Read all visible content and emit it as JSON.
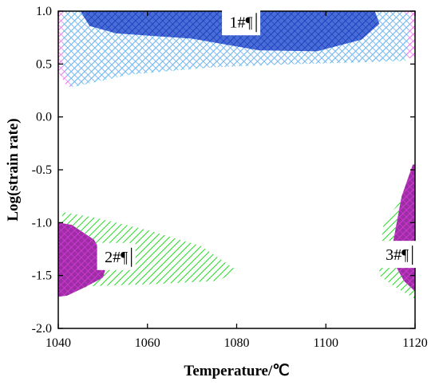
{
  "chart_data": {
    "type": "contour",
    "xlabel": "Temperature/℃",
    "ylabel": "Log(strain rate)",
    "xlim": [
      1040,
      1120
    ],
    "ylim": [
      -2.0,
      1.0
    ],
    "x_ticks": [
      "1040",
      "1060",
      "1080",
      "1100",
      "1120"
    ],
    "y_ticks": [
      "1.0",
      "0.5",
      "0.0",
      "-0.5",
      "-1.0",
      "-1.5",
      "-2.0"
    ],
    "grid": false,
    "regions": [
      {
        "label": "1#¶",
        "label_at": [
          1081,
          0.9
        ],
        "layers": [
          {
            "hatch": "crosshatch",
            "color": "#f06ef0",
            "polygon": [
              [
                1040,
                0.43
              ],
              [
                1042,
                0.28
              ],
              [
                1054,
                0.4
              ],
              [
                1070,
                0.46
              ],
              [
                1090,
                0.5
              ],
              [
                1110,
                0.52
              ],
              [
                1120,
                0.56
              ],
              [
                1120,
                1.0
              ],
              [
                1040,
                1.0
              ]
            ]
          },
          {
            "hatch": "crosshatch",
            "color": "#5ec8f0",
            "polygon": [
              [
                1041,
                0.48
              ],
              [
                1043,
                0.28
              ],
              [
                1056,
                0.4
              ],
              [
                1075,
                0.47
              ],
              [
                1095,
                0.5
              ],
              [
                1118,
                0.53
              ],
              [
                1119,
                0.95
              ],
              [
                1117,
                1.0
              ],
              [
                1041,
                1.0
              ]
            ]
          },
          {
            "hatch": "crosshatch",
            "color": "#1e3fbe",
            "fill": "#4a6ed8",
            "polygon": [
              [
                1045,
                1.0
              ],
              [
                1047,
                0.86
              ],
              [
                1053,
                0.79
              ],
              [
                1070,
                0.74
              ],
              [
                1085,
                0.63
              ],
              [
                1098,
                0.62
              ],
              [
                1108,
                0.73
              ],
              [
                1112,
                0.88
              ],
              [
                1111,
                1.0
              ]
            ]
          }
        ]
      },
      {
        "label": "2#¶",
        "label_at": [
          1053,
          -1.32
        ],
        "layers": [
          {
            "hatch": "diagonal",
            "color": "#22dd22",
            "polygon": [
              [
                1040,
                -1.22
              ],
              [
                1041,
                -0.9
              ],
              [
                1048,
                -0.95
              ],
              [
                1060,
                -1.07
              ],
              [
                1072,
                -1.22
              ],
              [
                1080,
                -1.45
              ],
              [
                1076,
                -1.55
              ],
              [
                1062,
                -1.58
              ],
              [
                1048,
                -1.6
              ],
              [
                1040,
                -1.65
              ]
            ]
          },
          {
            "hatch": "crosshatch",
            "color": "#d23ad2",
            "fill": "#9c2da5",
            "polygon": [
              [
                1040,
                -1.0
              ],
              [
                1043,
                -1.02
              ],
              [
                1048,
                -1.16
              ],
              [
                1051,
                -1.38
              ],
              [
                1050,
                -1.52
              ],
              [
                1046,
                -1.61
              ],
              [
                1042,
                -1.69
              ],
              [
                1040,
                -1.7
              ]
            ]
          }
        ]
      },
      {
        "label": "3#¶",
        "label_at": [
          1116,
          -1.3
        ],
        "layers": [
          {
            "hatch": "diagonal",
            "color": "#22dd22",
            "polygon": [
              [
                1112,
                -1.3
              ],
              [
                1113,
                -1.0
              ],
              [
                1117,
                -0.78
              ],
              [
                1120,
                -0.58
              ],
              [
                1120,
                -1.72
              ],
              [
                1116,
                -1.62
              ],
              [
                1112,
                -1.5
              ]
            ]
          },
          {
            "hatch": "crosshatch",
            "color": "#d23ad2",
            "fill": "#9c2da5",
            "polygon": [
              [
                1115,
                -1.2
              ],
              [
                1117,
                -0.75
              ],
              [
                1119.5,
                -0.45
              ],
              [
                1120,
                -0.45
              ],
              [
                1120,
                -1.65
              ],
              [
                1117.5,
                -1.55
              ],
              [
                1115.5,
                -1.4
              ]
            ]
          }
        ]
      }
    ]
  }
}
